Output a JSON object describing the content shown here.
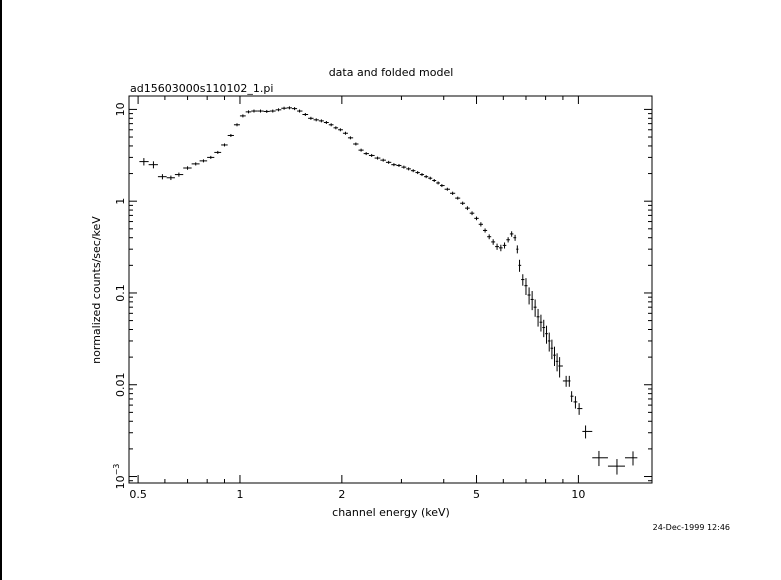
{
  "chart_data": {
    "type": "scatter",
    "title": "data and folded model",
    "subtitle": "ad15603000s110102_1.pi",
    "xlabel": "channel energy (keV)",
    "ylabel": "normalized counts/sec/keV",
    "timestamp": "24-Dec-1999 12:46",
    "x_scale": "log",
    "y_scale": "log",
    "xlim": [
      0.47,
      16.5
    ],
    "ylim": [
      0.00085,
      14
    ],
    "x_ticks": [
      {
        "value": 0.5,
        "label": "0.5"
      },
      {
        "value": 1,
        "label": "1"
      },
      {
        "value": 2,
        "label": "2"
      },
      {
        "value": 5,
        "label": "5"
      },
      {
        "value": 10,
        "label": "10"
      }
    ],
    "y_ticks": [
      {
        "value": 0.001,
        "label": "10",
        "sup": "−3"
      },
      {
        "value": 0.01,
        "label": "0.01"
      },
      {
        "value": 0.1,
        "label": "0.1"
      },
      {
        "value": 1,
        "label": "1"
      },
      {
        "value": 10,
        "label": "10"
      }
    ],
    "grid": false,
    "series": [
      {
        "color": "#000000",
        "x": [
          0.52,
          0.555,
          0.59,
          0.625,
          0.66,
          0.7,
          0.74,
          0.78,
          0.82,
          0.86,
          0.9,
          0.94,
          0.98,
          1.02,
          1.06,
          1.1,
          1.15,
          1.2,
          1.25,
          1.3,
          1.35,
          1.4,
          1.45,
          1.5,
          1.56,
          1.62,
          1.68,
          1.74,
          1.8,
          1.86,
          1.92,
          1.98,
          2.05,
          2.12,
          2.2,
          2.28,
          2.36,
          2.45,
          2.55,
          2.65,
          2.75,
          2.85,
          2.95,
          3.05,
          3.15,
          3.25,
          3.35,
          3.45,
          3.55,
          3.65,
          3.75,
          3.85,
          3.95,
          4.1,
          4.25,
          4.4,
          4.55,
          4.7,
          4.85,
          5.0,
          5.15,
          5.3,
          5.45,
          5.6,
          5.75,
          5.9,
          6.05,
          6.2,
          6.35,
          6.5,
          6.6,
          6.7,
          6.85,
          7.0,
          7.15,
          7.3,
          7.45,
          7.6,
          7.75,
          7.9,
          8.05,
          8.2,
          8.35,
          8.5,
          8.65,
          8.8,
          9.2,
          9.4,
          9.55,
          9.8,
          10.05,
          10.5,
          11.5,
          13.0,
          14.5
        ],
        "y": [
          2.7,
          2.5,
          1.85,
          1.8,
          1.95,
          2.3,
          2.55,
          2.75,
          3.0,
          3.4,
          4.1,
          5.2,
          6.8,
          8.5,
          9.4,
          9.6,
          9.6,
          9.5,
          9.6,
          9.9,
          10.3,
          10.4,
          10.2,
          9.6,
          8.8,
          8.0,
          7.7,
          7.5,
          7.2,
          6.8,
          6.3,
          6.0,
          5.5,
          4.9,
          4.2,
          3.6,
          3.3,
          3.15,
          2.95,
          2.8,
          2.65,
          2.5,
          2.45,
          2.35,
          2.25,
          2.15,
          2.05,
          1.95,
          1.85,
          1.78,
          1.68,
          1.58,
          1.48,
          1.35,
          1.22,
          1.08,
          0.95,
          0.84,
          0.74,
          0.65,
          0.56,
          0.48,
          0.41,
          0.36,
          0.32,
          0.31,
          0.33,
          0.38,
          0.44,
          0.4,
          0.3,
          0.2,
          0.14,
          0.12,
          0.095,
          0.085,
          0.07,
          0.055,
          0.048,
          0.042,
          0.036,
          0.03,
          0.025,
          0.021,
          0.018,
          0.016,
          0.011,
          0.011,
          0.0075,
          0.0065,
          0.0055,
          0.0031,
          0.0016,
          0.0013,
          0.0016
        ],
        "yerr": [
          0.25,
          0.22,
          0.12,
          0.1,
          0.1,
          0.1,
          0.1,
          0.1,
          0.1,
          0.12,
          0.14,
          0.15,
          0.18,
          0.2,
          0.2,
          0.2,
          0.2,
          0.2,
          0.2,
          0.2,
          0.2,
          0.2,
          0.2,
          0.2,
          0.2,
          0.2,
          0.2,
          0.2,
          0.2,
          0.2,
          0.2,
          0.2,
          0.2,
          0.15,
          0.12,
          0.1,
          0.08,
          0.08,
          0.08,
          0.07,
          0.07,
          0.07,
          0.07,
          0.07,
          0.07,
          0.06,
          0.06,
          0.06,
          0.06,
          0.06,
          0.05,
          0.05,
          0.05,
          0.05,
          0.05,
          0.04,
          0.04,
          0.04,
          0.035,
          0.03,
          0.03,
          0.025,
          0.025,
          0.025,
          0.025,
          0.025,
          0.025,
          0.025,
          0.03,
          0.03,
          0.03,
          0.03,
          0.02,
          0.025,
          0.02,
          0.02,
          0.015,
          0.012,
          0.01,
          0.009,
          0.008,
          0.007,
          0.006,
          0.005,
          0.004,
          0.004,
          0.0015,
          0.0015,
          0.001,
          0.001,
          0.0008,
          0.0005,
          0.0003,
          0.00025,
          0.00028
        ]
      }
    ]
  }
}
